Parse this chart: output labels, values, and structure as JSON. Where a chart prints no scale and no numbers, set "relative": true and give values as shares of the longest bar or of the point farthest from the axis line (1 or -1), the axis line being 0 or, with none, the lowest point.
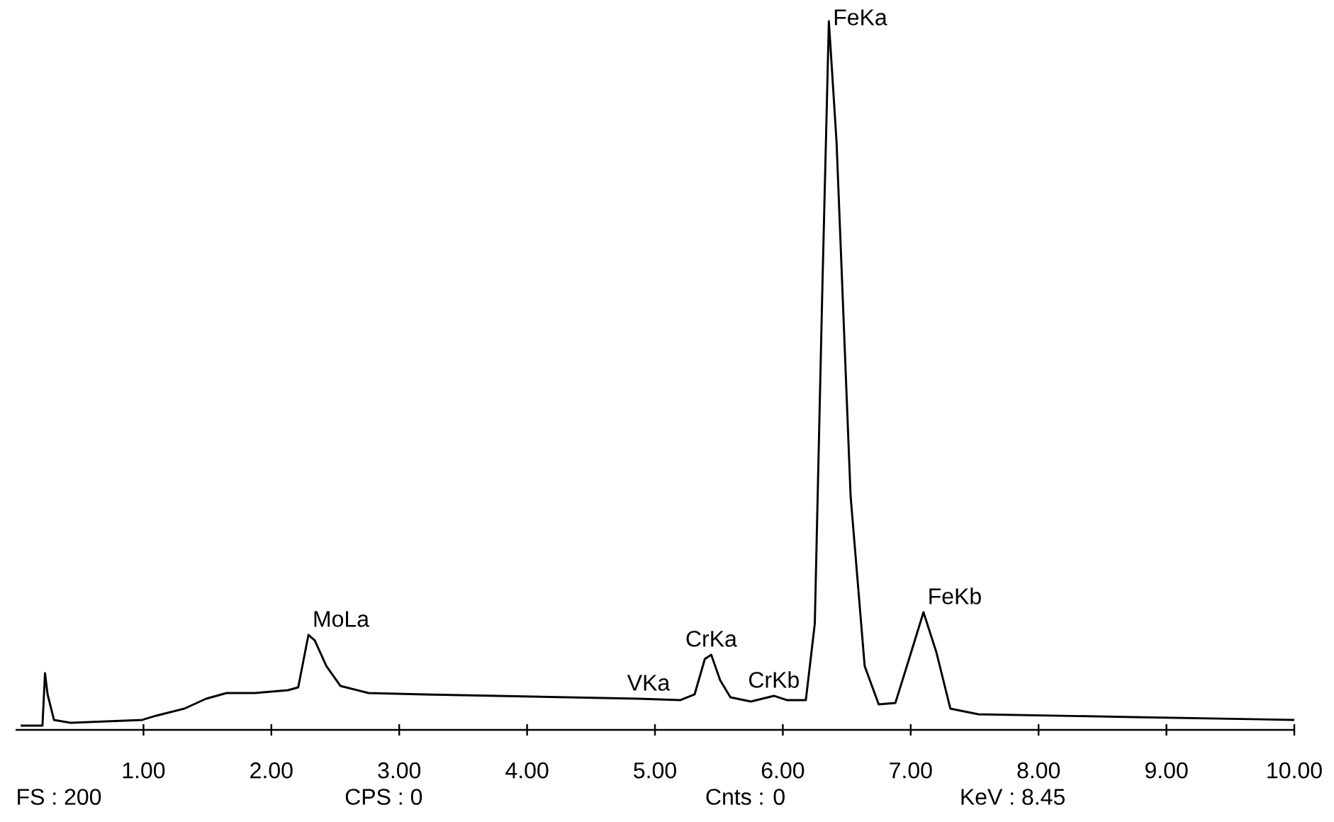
{
  "chart_data": {
    "type": "line",
    "relative": true,
    "color": "#000000",
    "x": [
      0.04,
      0.21,
      0.23,
      0.25,
      0.3,
      0.43,
      0.99,
      1.1,
      1.32,
      1.49,
      1.65,
      1.87,
      2.13,
      2.21,
      2.29,
      2.34,
      2.43,
      2.54,
      2.76,
      3.2,
      3.76,
      4.31,
      4.87,
      5.2,
      5.31,
      5.39,
      5.44,
      5.51,
      5.59,
      5.75,
      5.93,
      6.03,
      6.18,
      6.25,
      6.31,
      6.36,
      6.42,
      6.53,
      6.64,
      6.75,
      6.88,
      6.97,
      7.1,
      7.2,
      7.31,
      7.53,
      8.75,
      10.0
    ],
    "values": [
      0.006,
      0.006,
      0.08,
      0.05,
      0.014,
      0.01,
      0.014,
      0.02,
      0.03,
      0.044,
      0.052,
      0.052,
      0.056,
      0.06,
      0.134,
      0.126,
      0.09,
      0.062,
      0.052,
      0.05,
      0.048,
      0.046,
      0.044,
      0.042,
      0.05,
      0.1,
      0.106,
      0.07,
      0.046,
      0.04,
      0.048,
      0.042,
      0.042,
      0.15,
      0.63,
      1,
      0.83,
      0.33,
      0.09,
      0.036,
      0.038,
      0.09,
      0.166,
      0.11,
      0.03,
      0.022,
      0.018,
      0.014
    ],
    "xlim": [
      0,
      10
    ],
    "xticks": [
      {
        "value": 1,
        "label": "1.00"
      },
      {
        "value": 2,
        "label": "2.00"
      },
      {
        "value": 3,
        "label": "3.00"
      },
      {
        "value": 4,
        "label": "4.00"
      },
      {
        "value": 5,
        "label": "5.00"
      },
      {
        "value": 6,
        "label": "6.00"
      },
      {
        "value": 7,
        "label": "7.00"
      },
      {
        "value": 8,
        "label": "8.00"
      },
      {
        "value": 9,
        "label": "9.00"
      },
      {
        "value": 10,
        "label": "10.00"
      }
    ],
    "marker": "none",
    "line_style": "solid",
    "annotations": [
      {
        "text": "MoLa",
        "x": 2.29,
        "y": 0.134
      },
      {
        "text": "VKa",
        "x": 4.95,
        "y": 0.044
      },
      {
        "text": "CrKa",
        "x": 5.44,
        "y": 0.106
      },
      {
        "text": "CrKb",
        "x": 5.93,
        "y": 0.048
      },
      {
        "text": "FeKa",
        "x": 6.36,
        "y": 1
      },
      {
        "text": "FeKb",
        "x": 7.1,
        "y": 0.166
      },
      "FS : 200",
      "CPS : 0",
      "Cnts : 0",
      "KeV : 8.45"
    ]
  }
}
